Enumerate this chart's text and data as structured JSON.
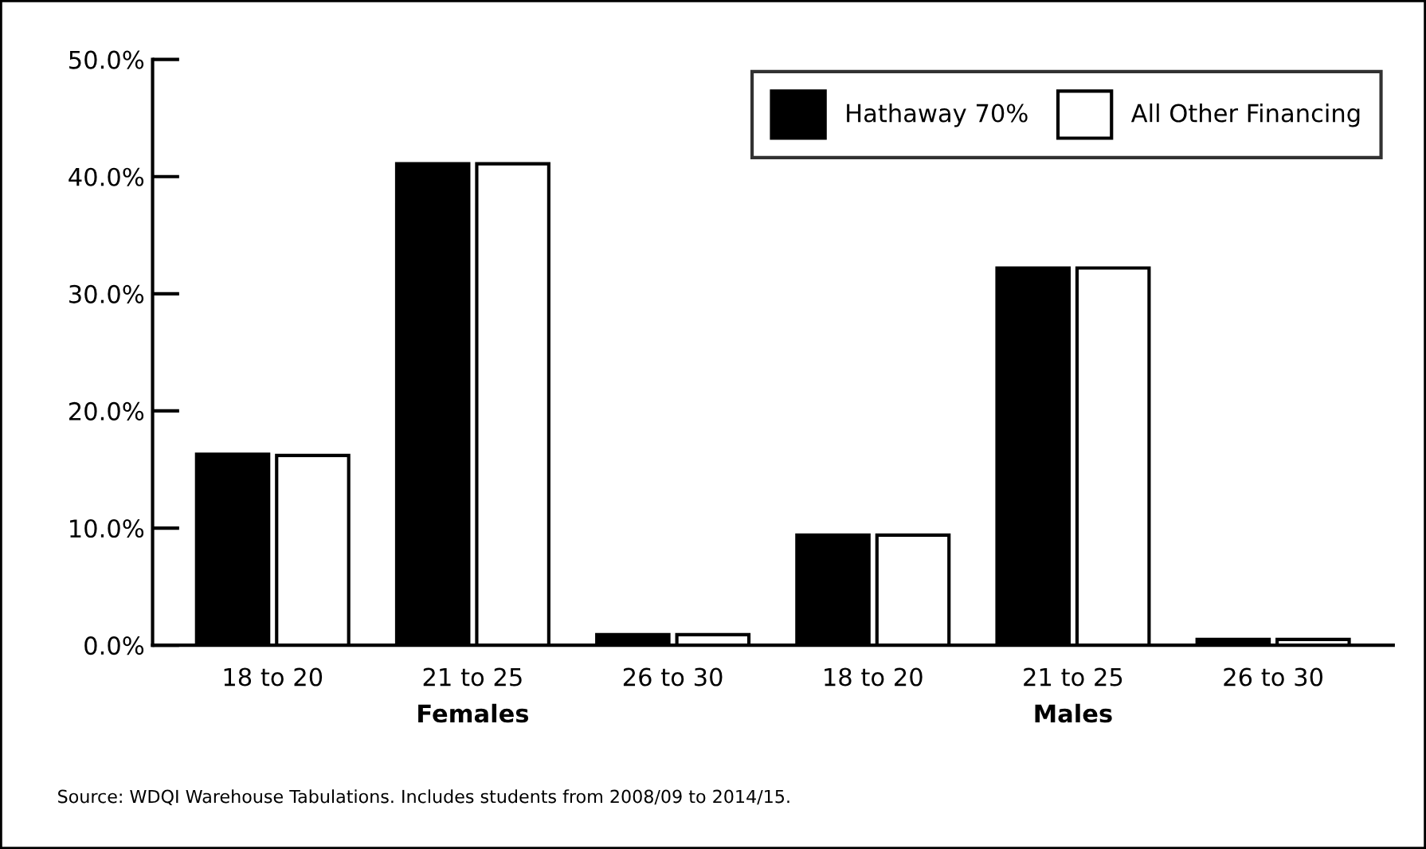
{
  "chart_data": {
    "type": "bar",
    "categories": [
      "18 to 20",
      "21 to 25",
      "26 to 30",
      "18 to 20",
      "21 to 25",
      "26 to 30"
    ],
    "series": [
      {
        "name": "Hathaway 70%",
        "color": "#000000",
        "values": [
          16.3,
          41.1,
          0.9,
          9.4,
          32.2,
          0.5
        ]
      },
      {
        "name": "All Other Financing",
        "color": "#ffffff",
        "values": [
          16.2,
          41.1,
          0.9,
          9.4,
          32.2,
          0.5
        ]
      }
    ],
    "ylim": [
      0,
      50
    ],
    "yticks": [
      {
        "value": 0,
        "label": "0.0%"
      },
      {
        "value": 10,
        "label": "10.0%"
      },
      {
        "value": 20,
        "label": "20.0%"
      },
      {
        "value": 30,
        "label": "30.0%"
      },
      {
        "value": 40,
        "label": "40.0%"
      },
      {
        "value": 50,
        "label": "50.0%"
      }
    ],
    "annotations": [
      "Females",
      "Males",
      "Source: WDQI Warehouse Tabulations. Includes students from 2008/09 to 2014/15."
    ],
    "grid": false,
    "legend": "top right"
  }
}
